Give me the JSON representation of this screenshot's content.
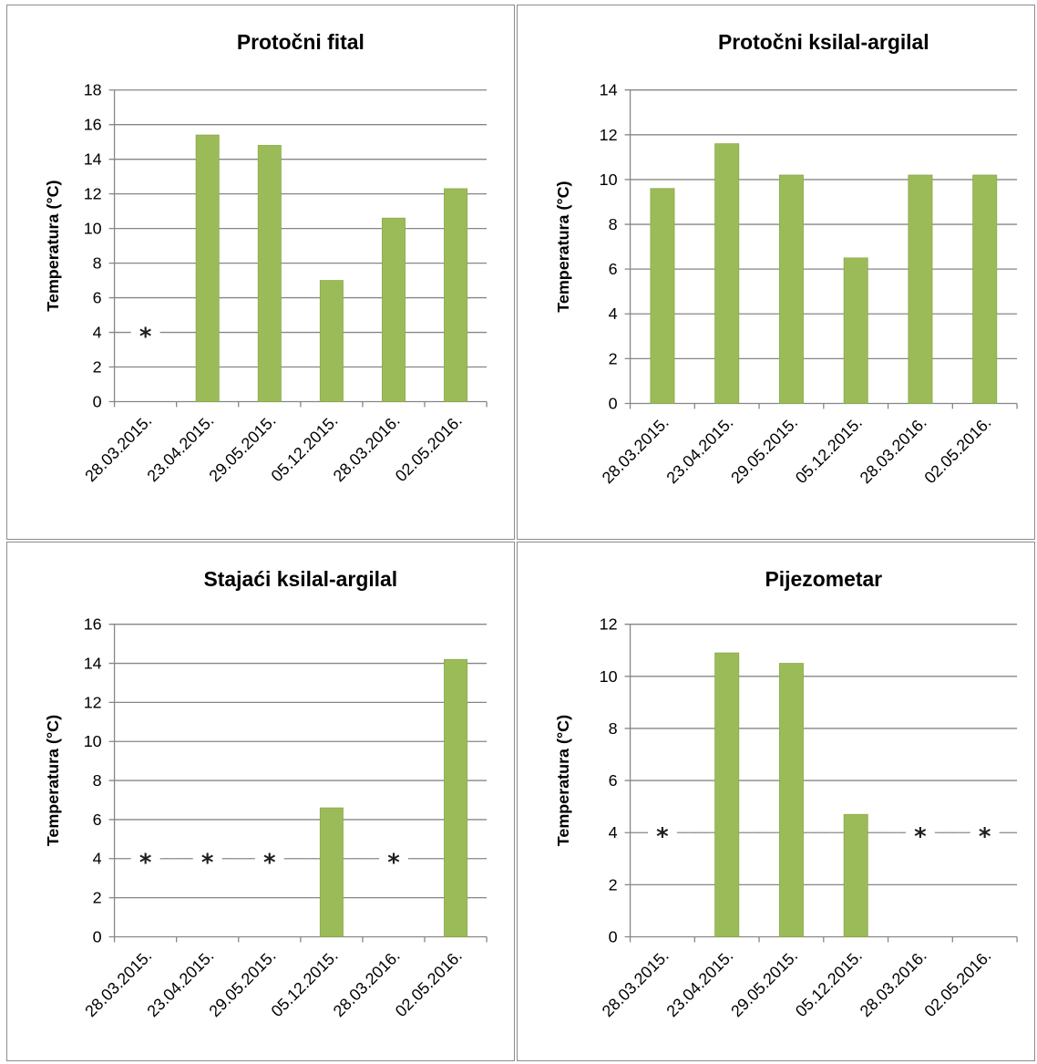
{
  "colors": {
    "bar": "#9bbb59",
    "bar_edge": "#8aab4a",
    "grid": "#868686",
    "border": "#8c8c8c"
  },
  "missing_marker": "*",
  "chart_data": [
    {
      "type": "bar",
      "title": "Protočni fital",
      "ylabel": "Temperatura (°C)",
      "xlabel": "",
      "categories": [
        "28.03.2015.",
        "23.04.2015.",
        "29.05.2015.",
        "05.12.2015.",
        "28.03.2016.",
        "02.05.2016."
      ],
      "values": [
        null,
        15.4,
        14.8,
        7.0,
        10.6,
        12.3
      ],
      "missing_marker_level": 4,
      "ylim": [
        0,
        18
      ],
      "yticks": [
        0,
        2,
        4,
        6,
        8,
        10,
        12,
        14,
        16,
        18
      ],
      "grid": true,
      "legend": "none"
    },
    {
      "type": "bar",
      "title": "Protočni ksilal-argilal",
      "ylabel": "Temperatura (°C)",
      "xlabel": "",
      "categories": [
        "28.03.2015.",
        "23.04.2015.",
        "29.05.2015.",
        "05.12.2015.",
        "28.03.2016.",
        "02.05.2016."
      ],
      "values": [
        9.6,
        11.6,
        10.2,
        6.5,
        10.2,
        10.2
      ],
      "missing_marker_level": 4,
      "ylim": [
        0,
        14
      ],
      "yticks": [
        0,
        2,
        4,
        6,
        8,
        10,
        12,
        14
      ],
      "grid": true,
      "legend": "none"
    },
    {
      "type": "bar",
      "title": "Stajaći ksilal-argilal",
      "ylabel": "Temperatura (°C)",
      "xlabel": "",
      "categories": [
        "28.03.2015.",
        "23.04.2015.",
        "29.05.2015.",
        "05.12.2015.",
        "28.03.2016.",
        "02.05.2016."
      ],
      "values": [
        null,
        null,
        null,
        6.6,
        null,
        14.2
      ],
      "missing_marker_level": 4,
      "ylim": [
        0,
        16
      ],
      "yticks": [
        0,
        2,
        4,
        6,
        8,
        10,
        12,
        14,
        16
      ],
      "grid": true,
      "legend": "none"
    },
    {
      "type": "bar",
      "title": "Pijezometar",
      "ylabel": "Temperatura (°C)",
      "xlabel": "",
      "categories": [
        "28.03.2015.",
        "23.04.2015.",
        "29.05.2015.",
        "05.12.2015.",
        "28.03.2016.",
        "02.05.2016."
      ],
      "values": [
        null,
        10.9,
        10.5,
        4.7,
        null,
        null
      ],
      "missing_marker_level": 4,
      "ylim": [
        0,
        12
      ],
      "yticks": [
        0,
        2,
        4,
        6,
        8,
        10,
        12
      ],
      "grid": true,
      "legend": "none"
    }
  ]
}
